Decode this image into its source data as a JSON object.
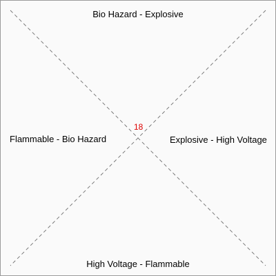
{
  "diagram": {
    "labels": {
      "top": "Bio Hazard - Explosive",
      "right": "Explosive - High Voltage",
      "bottom": "High Voltage - Flammable",
      "left": "Flammable - Bio Hazard"
    },
    "center_value": "18",
    "colors": {
      "center_value": "#dd0000",
      "divider": "#707070",
      "background": "#fafafa",
      "border": "#9a9a9a"
    }
  }
}
